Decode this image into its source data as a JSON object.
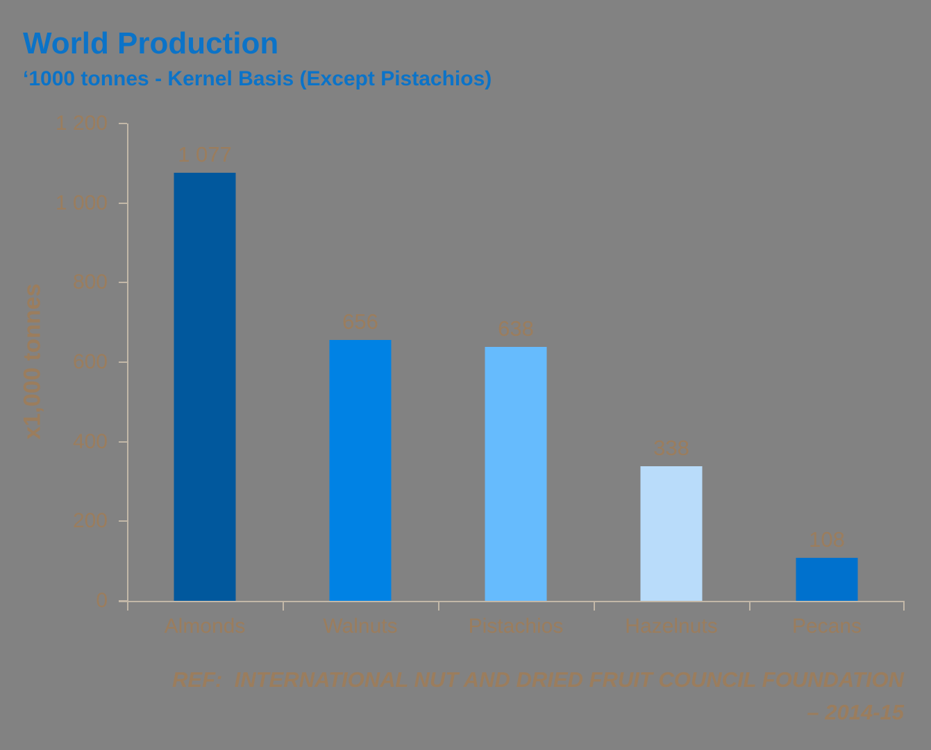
{
  "colors": {
    "background": "#828282",
    "title_blue": "#0b73c8",
    "text_brown": "#9b7d5d",
    "axis_line": "#c3b8a8"
  },
  "footer": {
    "line1": "REF:  INTERNATIONAL NUT AND DRIED FRUIT COUNCIL FOUNDATION",
    "line2": "– 2014-15"
  },
  "chart_data": {
    "type": "bar",
    "title": "World Production",
    "subtitle": "‘1000 tonnes - Kernel Basis (Except Pistachios)",
    "ylabel": "x1,000 tonnes",
    "xlabel": "",
    "categories": [
      "Almonds",
      "Walnuts",
      "Pistachios",
      "Hazelnuts",
      "Pecans"
    ],
    "values": [
      1077,
      656,
      638,
      338,
      108
    ],
    "value_labels": [
      "1 077",
      "656",
      "638",
      "338",
      "108"
    ],
    "bar_colors": [
      "#01589d",
      "#0082e4",
      "#66bbfd",
      "#b9dcfa",
      "#0071cd"
    ],
    "ylim": [
      0,
      1200
    ],
    "ytick_step": 200,
    "yticks": [
      {
        "value": 0,
        "label": "0"
      },
      {
        "value": 200,
        "label": "200"
      },
      {
        "value": 400,
        "label": "400"
      },
      {
        "value": 600,
        "label": "600"
      },
      {
        "value": 800,
        "label": "800"
      },
      {
        "value": 1000,
        "label": "1 000"
      },
      {
        "value": 1200,
        "label": "1 200"
      }
    ],
    "grid": false,
    "legend": false
  }
}
